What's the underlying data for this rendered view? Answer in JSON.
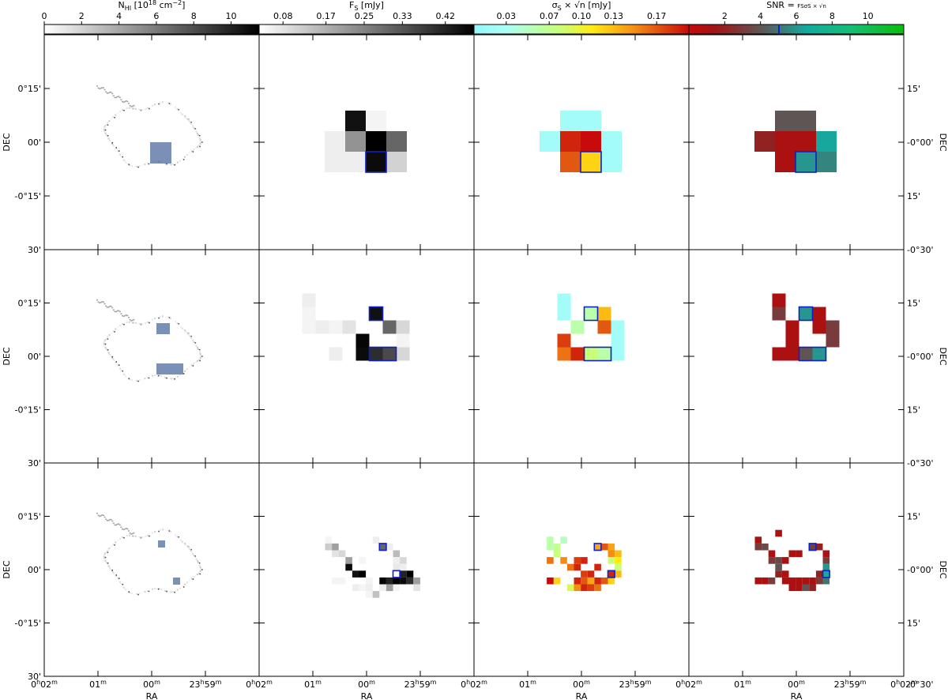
{
  "chart_data": {
    "type": "heatmap",
    "layout": "3 rows x 4 columns of sky-map panels",
    "columns": [
      {
        "key": "nhi",
        "colorbar_label_parts": [
          "N",
          "HI",
          " [10",
          "18",
          " cm",
          "−2",
          "]"
        ],
        "colorbar_ticks": [
          "0",
          "2",
          "4",
          "6",
          "8",
          "10"
        ],
        "colorbar_range": [
          0,
          11.5
        ],
        "colormap": "greys"
      },
      {
        "key": "flux",
        "colorbar_label_parts": [
          "F",
          "S",
          " [mJy]"
        ],
        "colorbar_ticks": [
          "0.08",
          "0.17",
          "0.25",
          "0.33",
          "0.42"
        ],
        "colorbar_range": [
          0.03,
          0.48
        ],
        "colormap": "greys"
      },
      {
        "key": "sigma",
        "colorbar_label_parts": [
          "σ",
          "S",
          " × √n [mJy]"
        ],
        "colorbar_ticks": [
          "0.03",
          "0.07",
          "0.10",
          "0.13",
          "0.17"
        ],
        "colorbar_range": [
          0.0,
          0.2
        ],
        "colormap": "cyan-yellow-red"
      },
      {
        "key": "snr",
        "colorbar_label_parts": [
          "SNR = ",
          "F",
          "S",
          "σ",
          "S",
          " × √n"
        ],
        "colorbar_ticks": [
          "2",
          "4",
          "6",
          "8",
          "10"
        ],
        "colorbar_range": [
          0,
          12
        ],
        "colormap": "red-teal-green"
      }
    ],
    "x_axis": {
      "label": "RA",
      "tick_labels": [
        "0h02m",
        "01m",
        "00m",
        "23h59m",
        "0h02m"
      ]
    },
    "y_axis_left": {
      "label": "DEC",
      "tick_labels": [
        "0°15'",
        "00'",
        "-0°15'",
        "30'"
      ]
    },
    "y_axis_right": {
      "label": "DEC",
      "tick_labels": [
        "15'",
        "-0°00'",
        "15'",
        "-0°30'"
      ]
    },
    "rows": [
      {
        "grid_step": 2,
        "nhi_boxes": [
          [
            0,
            0
          ]
        ],
        "flux": [
          [
            -2,
            -2,
            0.45
          ],
          [
            0,
            -2,
            0.05
          ],
          [
            -4,
            0,
            0.06
          ],
          [
            -2,
            0,
            0.22
          ],
          [
            0,
            0,
            0.48
          ],
          [
            2,
            0,
            0.3
          ],
          [
            -4,
            2,
            0.06
          ],
          [
            -2,
            2,
            0.06
          ],
          [
            0,
            2,
            0.46
          ],
          [
            2,
            2,
            0.11
          ]
        ],
        "sigma": [
          [
            -2,
            -2,
            0.02
          ],
          [
            0,
            -2,
            0.02
          ],
          [
            -4,
            0,
            0.02
          ],
          [
            -2,
            0,
            0.19
          ],
          [
            0,
            0,
            0.2
          ],
          [
            2,
            0,
            0.02
          ],
          [
            -2,
            2,
            0.17
          ],
          [
            0,
            2,
            0.12
          ],
          [
            2,
            2,
            0.02
          ]
        ],
        "snr": [
          [
            -2,
            -2,
            4
          ],
          [
            0,
            -2,
            4
          ],
          [
            -4,
            0,
            2
          ],
          [
            -2,
            0,
            1
          ],
          [
            0,
            0,
            1
          ],
          [
            2,
            0,
            6.5
          ],
          [
            -2,
            2,
            1
          ],
          [
            0,
            2,
            6
          ],
          [
            2,
            2,
            5.5
          ]
        ],
        "selected": [
          [
            0,
            2,
            2,
            2
          ]
        ]
      },
      {
        "grid_step": 1,
        "flux": [
          [
            -5,
            -4,
            0.06
          ],
          [
            -5,
            -3,
            0.05
          ],
          [
            0,
            -3,
            0.45
          ],
          [
            -5,
            -2,
            0.05
          ],
          [
            -4,
            -2,
            0.06
          ],
          [
            -3,
            -2,
            0.05
          ],
          [
            -2,
            -2,
            0.08
          ],
          [
            1,
            -2,
            0.3
          ],
          [
            2,
            -2,
            0.1
          ],
          [
            -1,
            -1,
            0.47
          ],
          [
            -3,
            0,
            0.06
          ],
          [
            -1,
            0,
            0.46
          ],
          [
            0,
            0,
            0.4
          ],
          [
            1,
            0,
            0.35
          ],
          [
            2,
            0,
            0.1
          ],
          [
            2,
            -1,
            0.05
          ]
        ],
        "sigma": [
          [
            -2,
            -4,
            0.02
          ],
          [
            -2,
            -3,
            0.02
          ],
          [
            0,
            -3,
            0.06
          ],
          [
            1,
            -3,
            0.13
          ],
          [
            -1,
            -2,
            0.06
          ],
          [
            -2,
            -1,
            0.18
          ],
          [
            1,
            -2,
            0.17
          ],
          [
            2,
            -1,
            0.02
          ],
          [
            2,
            -2,
            0.02
          ],
          [
            -1,
            0,
            0.19
          ],
          [
            -2,
            0,
            0.16
          ],
          [
            0,
            0,
            0.08
          ],
          [
            1,
            0,
            0.06
          ],
          [
            2,
            0,
            0.02
          ]
        ],
        "snr": [
          [
            -2,
            -4,
            1
          ],
          [
            -2,
            -3,
            3
          ],
          [
            0,
            -3,
            6
          ],
          [
            1,
            -3,
            1
          ],
          [
            1,
            -2,
            1
          ],
          [
            -1,
            -2,
            1
          ],
          [
            2,
            -2,
            3
          ],
          [
            2,
            -1,
            3
          ],
          [
            -1,
            0,
            1
          ],
          [
            0,
            0,
            4
          ],
          [
            1,
            0,
            6
          ],
          [
            -2,
            0,
            1
          ],
          [
            -1,
            -1,
            1
          ]
        ],
        "nhi_boxes": [
          [
            0,
            -3
          ],
          [
            0,
            0
          ],
          [
            1,
            0
          ]
        ],
        "selected": [
          [
            0,
            -3,
            1,
            1
          ],
          [
            0,
            0,
            2,
            1
          ]
        ]
      },
      {
        "grid_step": 0.5,
        "flux": [
          [
            -7,
            -4,
            0.05
          ],
          [
            -7,
            -3,
            0.12
          ],
          [
            -6,
            -3,
            0.2
          ],
          [
            -6,
            -2,
            0.08
          ],
          [
            -5,
            -2,
            0.1
          ],
          [
            -4,
            -1,
            0.2
          ],
          [
            -4,
            0,
            0.46
          ],
          [
            -3,
            1,
            0.45
          ],
          [
            -2,
            1,
            0.48
          ],
          [
            1,
            -3,
            0.3
          ],
          [
            2,
            -3,
            0.06
          ],
          [
            3,
            -2,
            0.15
          ],
          [
            3,
            -1,
            0.06
          ],
          [
            4,
            -1,
            0.1
          ],
          [
            3,
            0,
            0.07
          ],
          [
            4,
            0,
            0.06
          ],
          [
            4,
            1,
            0.42
          ],
          [
            5,
            1,
            0.48
          ],
          [
            4,
            2,
            0.46
          ],
          [
            5,
            2,
            0.4
          ],
          [
            3,
            2,
            0.48
          ],
          [
            2,
            2,
            0.42
          ],
          [
            1,
            2,
            0.48
          ],
          [
            1,
            3,
            0.06
          ],
          [
            -1,
            2,
            0.05
          ],
          [
            -1,
            3,
            0.06
          ],
          [
            -1,
            4,
            0.05
          ],
          [
            0,
            4,
            0.14
          ],
          [
            -2,
            3,
            0.05
          ],
          [
            -3,
            3,
            0.06
          ],
          [
            -5,
            2,
            0.05
          ],
          [
            -6,
            2,
            0.05
          ],
          [
            6,
            2,
            0.2
          ],
          [
            6,
            3,
            0.08
          ],
          [
            2,
            3,
            0.2
          ],
          [
            3,
            3,
            0.05
          ],
          [
            -2,
            -1,
            0.05
          ],
          [
            0,
            -4,
            0.06
          ]
        ],
        "sigma": [
          [
            -6,
            -4,
            0.06
          ],
          [
            -6,
            -3,
            0.06
          ],
          [
            -5,
            -3,
            0.07
          ],
          [
            -4,
            -4,
            0.05
          ],
          [
            -5,
            -2,
            0.08
          ],
          [
            -4,
            -1,
            0.15
          ],
          [
            -3,
            0,
            0.16
          ],
          [
            -2,
            0,
            0.19
          ],
          [
            -2,
            -1,
            0.18
          ],
          [
            -1,
            -1,
            0.19
          ],
          [
            1,
            -3,
            0.14
          ],
          [
            2,
            -3,
            0.17
          ],
          [
            3,
            -3,
            0.14
          ],
          [
            3,
            -2,
            0.15
          ],
          [
            4,
            -2,
            0.13
          ],
          [
            4,
            -1,
            0.11
          ],
          [
            3,
            -1,
            0.08
          ],
          [
            4,
            0,
            0.08
          ],
          [
            1,
            0,
            0.19
          ],
          [
            0,
            1,
            0.19
          ],
          [
            -1,
            1,
            0.18
          ],
          [
            3,
            1,
            0.19
          ],
          [
            4,
            1,
            0.13
          ],
          [
            3,
            2,
            0.12
          ],
          [
            2,
            2,
            0.17
          ],
          [
            1,
            2,
            0.19
          ],
          [
            0,
            2,
            0.14
          ],
          [
            -2,
            2,
            0.19
          ],
          [
            -1,
            2,
            0.17
          ],
          [
            -1,
            3,
            0.19
          ],
          [
            -2,
            3,
            0.15
          ],
          [
            -3,
            3,
            0.09
          ],
          [
            0,
            3,
            0.18
          ],
          [
            1,
            3,
            0.16
          ],
          [
            -5,
            2,
            0.12
          ],
          [
            -6,
            2,
            0.2
          ],
          [
            -6,
            -1,
            0.16
          ]
        ],
        "snr": [
          [
            -7,
            -4,
            1
          ],
          [
            -6,
            -3,
            3.5
          ],
          [
            -7,
            -3,
            3
          ],
          [
            -5,
            -2,
            1
          ],
          [
            -4,
            -1,
            3.5
          ],
          [
            -3,
            -1,
            1
          ],
          [
            -5,
            -1,
            3
          ],
          [
            -4,
            0,
            4
          ],
          [
            -4,
            1,
            2
          ],
          [
            -3,
            1,
            1
          ],
          [
            -2,
            -2,
            1
          ],
          [
            -1,
            -2,
            1
          ],
          [
            1,
            -3,
            3
          ],
          [
            2,
            -3,
            2
          ],
          [
            3,
            -2,
            1
          ],
          [
            3,
            -1,
            3
          ],
          [
            3,
            0,
            6
          ],
          [
            3,
            1,
            7
          ],
          [
            2,
            1,
            2
          ],
          [
            2,
            2,
            3
          ],
          [
            3,
            2,
            5
          ],
          [
            1,
            2,
            1
          ],
          [
            0,
            2,
            1
          ],
          [
            -1,
            2,
            1
          ],
          [
            -2,
            2,
            1
          ],
          [
            -3,
            2,
            1
          ],
          [
            -1,
            3,
            1
          ],
          [
            -2,
            3,
            1
          ],
          [
            -6,
            2,
            1
          ],
          [
            -5,
            2,
            3
          ],
          [
            -7,
            2,
            1
          ],
          [
            0,
            3,
            4
          ],
          [
            1,
            3,
            2
          ],
          [
            -4,
            -5,
            1
          ]
        ],
        "nhi_boxes": [
          [
            1,
            -3
          ],
          [
            2,
            1
          ]
        ],
        "selected": [
          [
            1,
            -3,
            1,
            1
          ],
          [
            3,
            1,
            1,
            1
          ]
        ]
      }
    ]
  }
}
